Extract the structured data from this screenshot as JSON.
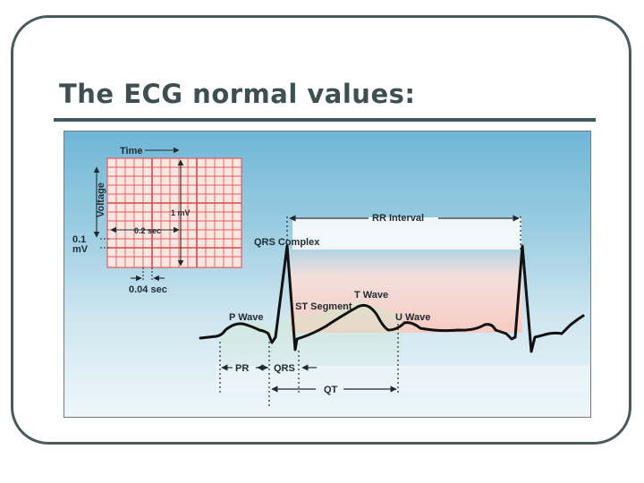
{
  "slide": {
    "title": "The ECG normal values:"
  },
  "diagram": {
    "grid_labels": {
      "time": "Time",
      "voltage": "Voltage",
      "one_mv": "1 mV",
      "point_two_sec": "0.2 sec",
      "point_one": "0.1",
      "mv": "mV",
      "point_zero_four_sec": "0.04 sec"
    },
    "wave_labels": {
      "rr_interval": "RR Interval",
      "qrs_complex": "QRS Complex",
      "t_wave": "T Wave",
      "st_segment": "ST Segment",
      "p_wave": "P Wave",
      "u_wave": "U Wave"
    },
    "interval_labels": {
      "pr": "PR",
      "qrs": "QRS",
      "qt": "QT"
    },
    "colors": {
      "grid_line": "#e35b5b",
      "grid_fill": "#fbe3de",
      "trace": "#111111",
      "sky_top": "#6fb7d6",
      "sky_bottom": "#e6f1f7"
    }
  }
}
